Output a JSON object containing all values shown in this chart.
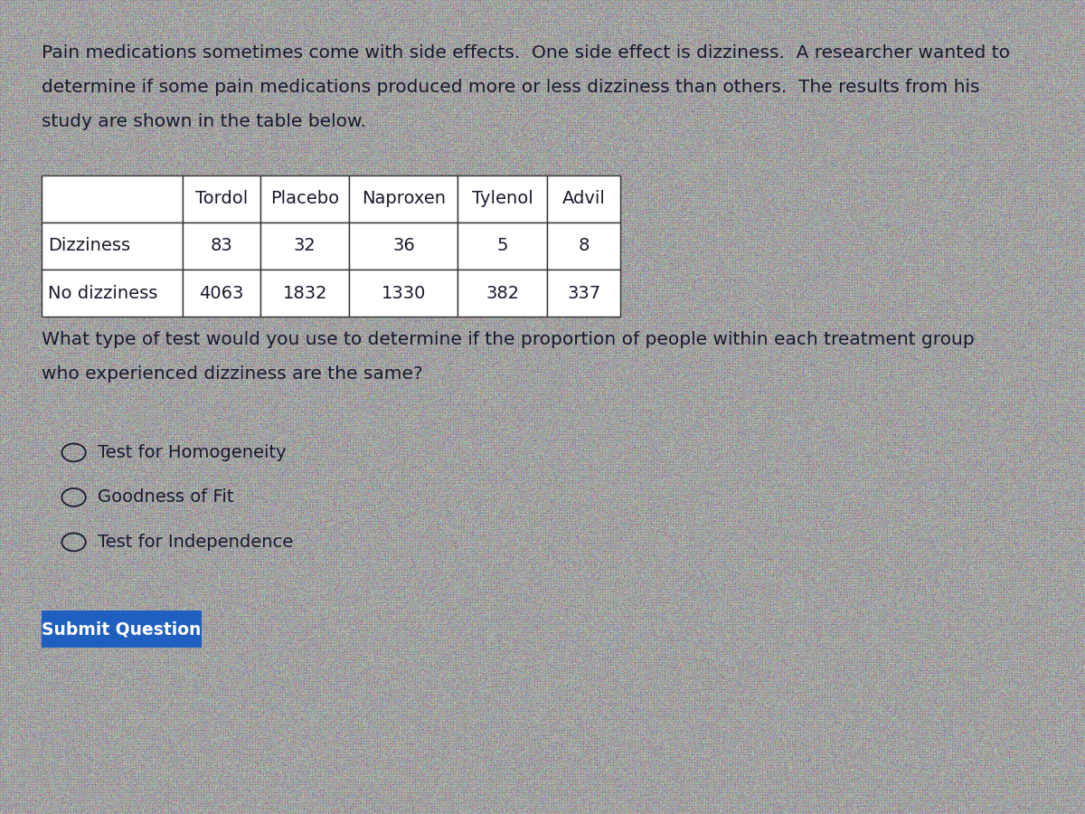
{
  "background_color": "#a8a8a8",
  "intro_text_lines": [
    "Pain medications sometimes come with side effects.  One side effect is dizziness.  A researcher wanted to",
    "determine if some pain medications produced more or less dizziness than others.  The results from his",
    "study are shown in the table below."
  ],
  "table_headers": [
    "",
    "Tordol",
    "Placebo",
    "Naproxen",
    "Tylenol",
    "Advil"
  ],
  "table_row1": [
    "Dizziness",
    "83",
    "32",
    "36",
    "5",
    "8"
  ],
  "table_row2": [
    "No dizziness",
    "4063",
    "1832",
    "1330",
    "382",
    "337"
  ],
  "question_text_lines": [
    "What type of test would you use to determine if the proportion of people within each treatment group",
    "who experienced dizziness are the same?"
  ],
  "options": [
    "Test for Homogeneity",
    "Goodness of Fit",
    "Test for Independence"
  ],
  "button_text": "Submit Question",
  "button_bg": "#1f5fbf",
  "button_fg": "#ffffff",
  "text_color": "#1a1a2e",
  "table_bg": "#ffffff",
  "table_border": "#333333",
  "intro_fontsize": 14.5,
  "question_fontsize": 14.5,
  "option_fontsize": 14.0,
  "table_fontsize": 14.0,
  "noise_mean": 168,
  "noise_std": 18
}
